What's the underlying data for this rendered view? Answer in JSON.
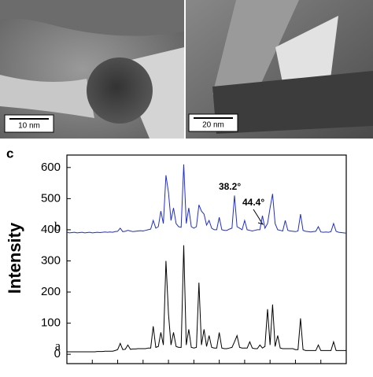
{
  "panels": [
    {
      "scale_bar": "10 nm"
    },
    {
      "scale_bar": "20 nm"
    }
  ],
  "chart_data": {
    "type": "line",
    "panel_label": "c",
    "y_label": "Intensity",
    "annotations": [
      "38.2°",
      "44.4°"
    ],
    "x": [
      5,
      5.5,
      6,
      6.5,
      7,
      7.5,
      8,
      8.5,
      9,
      9.5,
      10,
      10.5,
      11,
      11.5,
      12,
      12.5,
      13,
      13.5,
      14,
      14.5,
      15,
      15.5,
      16,
      16.5,
      17,
      17.5,
      18,
      18.5,
      19,
      19.5,
      20,
      20.5,
      21,
      21.5,
      22,
      22.5,
      23,
      23.5,
      24,
      24.5,
      25,
      25.5,
      26,
      26.5,
      27,
      27.5,
      28,
      28.5,
      29,
      29.5,
      30,
      30.5,
      31,
      31.5,
      32,
      32.5,
      33,
      33.5,
      34,
      34.5,
      35,
      35.5,
      36,
      36.5,
      37,
      37.5,
      38,
      38.5,
      39,
      39.5,
      40,
      40.5,
      41,
      41.5,
      42,
      42.5,
      43,
      43.5,
      44,
      44.5,
      45,
      45.5,
      46,
      46.5,
      47,
      47.5,
      48,
      48.5,
      49,
      49.5,
      50,
      50.5,
      51,
      51.5,
      52,
      52.5,
      53,
      53.5,
      54,
      54.5,
      55,
      55.5,
      56,
      56.5,
      57,
      57.5,
      58,
      58.5,
      59,
      59.5,
      60
    ],
    "series": [
      {
        "name": "a",
        "color": "#000000",
        "values": [
          8,
          8,
          8,
          8,
          8,
          8,
          8,
          8,
          8,
          8,
          8,
          8,
          9,
          9,
          9,
          10,
          10,
          10,
          10,
          12,
          15,
          35,
          15,
          16,
          30,
          16,
          17,
          17,
          18,
          18,
          18,
          18,
          20,
          20,
          90,
          22,
          25,
          70,
          30,
          300,
          130,
          30,
          70,
          25,
          22,
          22,
          350,
          30,
          80,
          22,
          20,
          22,
          230,
          30,
          80,
          25,
          60,
          22,
          20,
          20,
          70,
          20,
          18,
          18,
          20,
          22,
          40,
          60,
          22,
          20,
          20,
          20,
          40,
          20,
          18,
          18,
          30,
          20,
          25,
          145,
          30,
          160,
          25,
          60,
          20,
          18,
          18,
          18,
          18,
          18,
          15,
          15,
          115,
          15,
          12,
          12,
          12,
          12,
          12,
          30,
          12,
          12,
          12,
          12,
          12,
          40,
          12,
          12,
          12,
          12,
          12
        ]
      },
      {
        "name": "b",
        "color": "#1f2fd0",
        "values": [
          392,
          390,
          391,
          392,
          390,
          391,
          392,
          390,
          391,
          392,
          390,
          391,
          392,
          391,
          392,
          393,
          392,
          393,
          392,
          394,
          395,
          405,
          394,
          395,
          398,
          396,
          394,
          395,
          396,
          397,
          396,
          398,
          400,
          402,
          430,
          405,
          410,
          460,
          420,
          575,
          520,
          430,
          470,
          420,
          410,
          408,
          610,
          420,
          470,
          410,
          405,
          410,
          480,
          460,
          450,
          415,
          430,
          405,
          400,
          400,
          440,
          400,
          398,
          398,
          402,
          405,
          510,
          410,
          405,
          400,
          430,
          400,
          398,
          396,
          398,
          400,
          400,
          445,
          405,
          420,
          470,
          515,
          420,
          400,
          398,
          396,
          430,
          398,
          396,
          395,
          394,
          396,
          450,
          398,
          395,
          394,
          393,
          394,
          395,
          410,
          393,
          392,
          393,
          392,
          394,
          420,
          395,
          392,
          391,
          390,
          389
        ]
      }
    ],
    "xlim": [
      5,
      60
    ],
    "xticks": [
      5,
      10,
      15,
      20,
      25,
      30,
      35,
      40,
      45,
      50,
      55,
      60
    ],
    "ylim": [
      -30,
      640
    ],
    "yticks": [
      0,
      100,
      200,
      300,
      400,
      500,
      600
    ]
  }
}
